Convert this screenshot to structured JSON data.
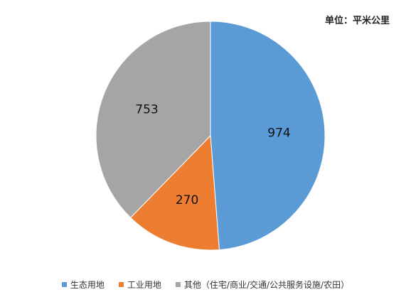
{
  "chart_data": {
    "type": "pie",
    "unit": "单位：平米公里",
    "categories": [
      "生态用地",
      "工业用地",
      "其他（住宅/商业/交通/公共服务设施/农田）"
    ],
    "values": [
      974,
      270,
      753
    ],
    "colors": [
      "#5B9BD5",
      "#ED7D31",
      "#A5A5A5"
    ],
    "data_labels": [
      "974",
      "270",
      "753"
    ],
    "start_angle": "top, clockwise",
    "legend_position": "bottom"
  }
}
